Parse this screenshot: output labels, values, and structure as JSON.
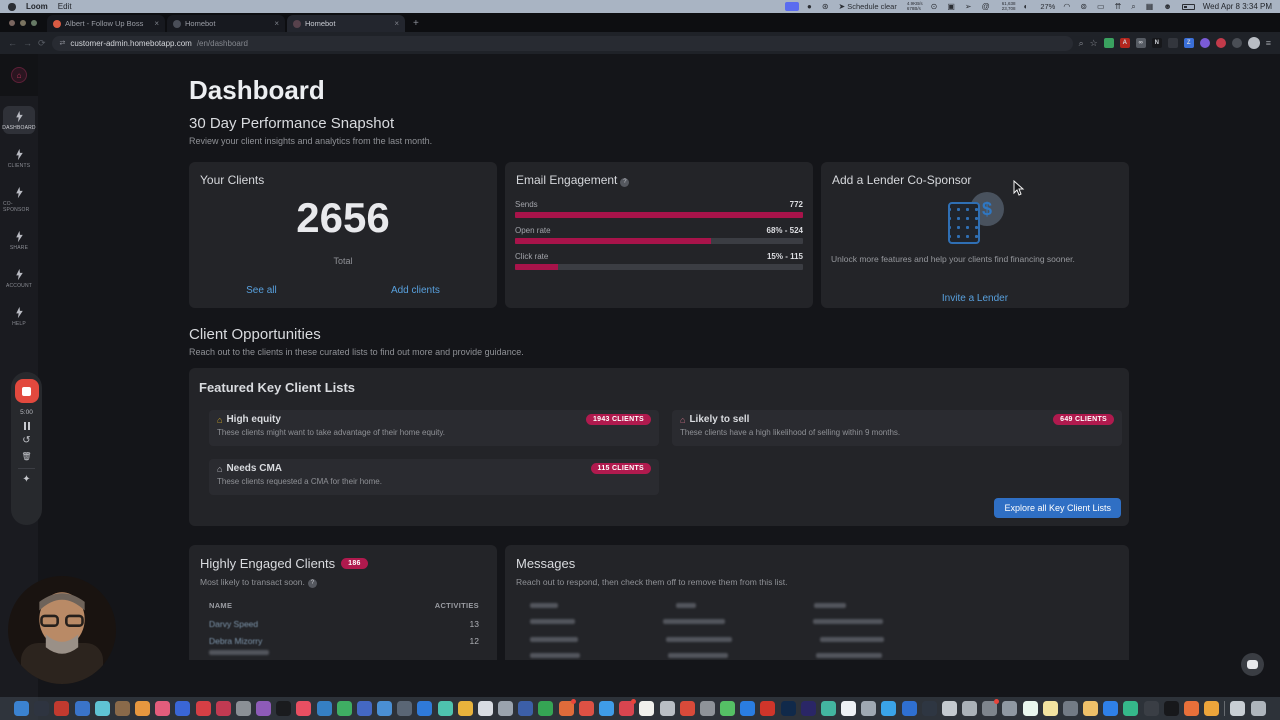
{
  "menubar": {
    "app_name": "Loom",
    "menu_edit": "Edit",
    "status_items": [
      {
        "g": "●"
      },
      {
        "g": "⊛"
      },
      {
        "g": "➤",
        "t": "Schedule clear"
      },
      {
        "t": "4.9KB/s\n678B/s",
        "st": true
      },
      {
        "g": "⊙"
      },
      {
        "g": "▣"
      },
      {
        "g": "➢"
      },
      {
        "g": "@"
      },
      {
        "t": "61,638\n23,708",
        "st": true
      },
      {
        "g": "◐"
      },
      {
        "t": "27%"
      },
      {
        "g": "◠"
      },
      {
        "g": "⊚"
      },
      {
        "g": "▭"
      },
      {
        "g": "⇈"
      },
      {
        "g": "⌕"
      },
      {
        "g": "▦"
      },
      {
        "g": "☻"
      }
    ],
    "clock": "Wed Apr 8 3:34 PM"
  },
  "browser": {
    "tabs": [
      {
        "label": "Albert - Follow Up Boss",
        "fav": "#d95b43",
        "close": "×"
      },
      {
        "label": "Homebot",
        "fav": "#4a4e58",
        "close": "×"
      },
      {
        "label": "Homebot",
        "fav": "#57424c",
        "close": "×",
        "active": true
      }
    ],
    "new_tab": "+",
    "back": "←",
    "forward": "→",
    "reload": "⟳",
    "site_icon": "⇄",
    "url_domain": "customer-admin.homebotapp.com",
    "url_path": "/en/dashboard",
    "search_glyph": "⌕",
    "bookmark_glyph": "☆",
    "menu_glyph": "≡",
    "extensions": [
      {
        "c": "#3aa15f"
      },
      {
        "c": "#b3261e",
        "g": "A"
      },
      {
        "c": "#565b63",
        "g": "∞"
      },
      {
        "c": "#16171a",
        "g": "N"
      },
      {
        "c": "#33363d"
      },
      {
        "c": "#3a6fd8",
        "g": "Z"
      },
      {
        "c": "#7a5bd6",
        "r": true
      },
      {
        "c": "#c23a4a",
        "r": true
      },
      {
        "c": "#4a4e55",
        "r": true
      }
    ]
  },
  "sidebar": {
    "items": [
      {
        "label": "DASHBOARD",
        "icon": "lightning-icon",
        "active": true
      },
      {
        "label": "CLIENTS",
        "icon": "person-icon"
      },
      {
        "label": "CO-SPONSOR",
        "icon": "flag-icon"
      },
      {
        "label": "SHARE",
        "icon": "link-icon"
      },
      {
        "label": "ACCOUNT",
        "icon": "avatar-ring-icon"
      },
      {
        "label": "HELP",
        "icon": "question-icon"
      }
    ]
  },
  "loom": {
    "timer": "5:00",
    "restart_glyph": "↺",
    "trash_glyph": "🗑",
    "effects_glyph": "✦"
  },
  "page": {
    "title": "Dashboard",
    "snapshot_heading": "30 Day Performance Snapshot",
    "snapshot_sub": "Review your client insights and analytics from the last month.",
    "your_clients": {
      "title": "Your Clients",
      "total": "2656",
      "total_label": "Total",
      "see_all": "See all",
      "add_clients": "Add clients"
    },
    "email_engagement": {
      "title": "Email Engagement",
      "help_glyph": "?",
      "metrics": [
        {
          "label": "Sends",
          "value": "772",
          "pct": "100%",
          "help": true
        },
        {
          "label": "Open rate",
          "value": "68% - 524",
          "pct": "68%"
        },
        {
          "label": "Click rate",
          "value": "15% - 115",
          "pct": "15%"
        }
      ]
    },
    "lender": {
      "title": "Add a Lender Co-Sponsor",
      "coin_glyph": "$",
      "description": "Unlock more features and help your clients find financing sooner.",
      "cta": "Invite a Lender"
    },
    "opportunities_heading": "Client Opportunities",
    "opportunities_sub": "Reach out to the clients in these curated lists to find out more and provide guidance.",
    "key_lists": {
      "title": "Featured Key Client Lists",
      "items": [
        {
          "name": "High equity",
          "desc": "These clients might want to take advantage of their home equity.",
          "badge": "1943 CLIENTS",
          "icon": "⌂",
          "ic": "#c9a227"
        },
        {
          "name": "Likely to sell",
          "desc": "These clients have a high likelihood of selling within 9 months.",
          "badge": "649 CLIENTS",
          "icon": "⌂",
          "ic": "#c06a7e"
        },
        {
          "name": "Needs CMA",
          "desc": "These clients requested a CMA for their home.",
          "badge": "115 CLIENTS",
          "icon": "⌂",
          "ic": "#b9bbc0"
        }
      ],
      "cta": "Explore all Key Client Lists"
    },
    "engaged": {
      "title": "Highly Engaged Clients",
      "count_badge": "186",
      "subtitle": "Most likely to transact soon.",
      "col_name": "NAME",
      "col_activities": "ACTIVITIES",
      "rows": [
        {
          "name": "Darvy Speed",
          "activities": "13"
        },
        {
          "name": "Debra Mizorry",
          "activities": "12"
        }
      ]
    },
    "messages": {
      "title": "Messages",
      "subtitle": "Reach out to respond, then check them off to remove them from this list."
    }
  },
  "colors": {
    "accent_crimson": "#a8134a",
    "badge_crimson": "#b01a4e",
    "link_blue": "#58a0dd",
    "button_blue": "#2f6fc4",
    "stop_red": "#e2493e"
  },
  "dock": {
    "icons": [
      {
        "c": "#3b82d0"
      },
      {
        "c": "#2e3440"
      },
      {
        "c": "#c23a2f"
      },
      {
        "c": "#3a74c9"
      },
      {
        "c": "#5fc3d4"
      },
      {
        "c": "#8a6a4a"
      },
      {
        "c": "#e6973f"
      },
      {
        "c": "#e35d7c"
      },
      {
        "c": "#3a66d6"
      },
      {
        "c": "#d63f45"
      },
      {
        "c": "#c13a52"
      },
      {
        "c": "#8b9096"
      },
      {
        "c": "#8e5bb8"
      },
      {
        "c": "#1a1b1e"
      },
      {
        "c": "#e84f62"
      },
      {
        "c": "#3580c4"
      },
      {
        "c": "#3fae63"
      },
      {
        "c": "#4468c4"
      },
      {
        "c": "#4a8fd4"
      },
      {
        "c": "#5a6675"
      },
      {
        "c": "#2f7ad9"
      },
      {
        "c": "#4ec3ae"
      },
      {
        "c": "#e8b33c"
      },
      {
        "c": "#d8dce2"
      },
      {
        "c": "#9aa3ad"
      },
      {
        "c": "#3c5fa8"
      },
      {
        "c": "#35a554"
      },
      {
        "c": "#df6b3a",
        "b": true
      },
      {
        "c": "#dd5144"
      },
      {
        "c": "#3f9ce8"
      },
      {
        "c": "#d8454f",
        "b": true
      },
      {
        "c": "#f0f0ec"
      },
      {
        "c": "#b9bec4"
      },
      {
        "c": "#d84a3a"
      },
      {
        "c": "#8e9399"
      },
      {
        "c": "#55c065"
      },
      {
        "c": "#2a7de1"
      },
      {
        "c": "#d0352a"
      },
      {
        "c": "#10294a"
      },
      {
        "c": "#2a2666"
      },
      {
        "c": "#43b5a0"
      },
      {
        "c": "#edf1f5"
      },
      {
        "c": "#9fa8b2"
      },
      {
        "c": "#3aa3e8"
      },
      {
        "c": "#2f6fd0"
      },
      {
        "c": "#2e3642"
      },
      {
        "c": "#c3c9cf"
      },
      {
        "c": "#aab1b8"
      },
      {
        "c": "#7e858d",
        "b": true
      },
      {
        "c": "#8f98a2"
      },
      {
        "c": "#e9f6ee"
      },
      {
        "c": "#f2e3a0"
      },
      {
        "c": "#737b85"
      },
      {
        "c": "#eec069"
      },
      {
        "c": "#2f80e8"
      },
      {
        "c": "#35b88a"
      },
      {
        "c": "#3a3e45"
      },
      {
        "c": "#17181b"
      },
      {
        "c": "#e8703a"
      },
      {
        "c": "#eda53b"
      },
      {
        "sep": true
      },
      {
        "c": "#c8ced4"
      },
      {
        "c": "#aeb5bc"
      }
    ]
  }
}
